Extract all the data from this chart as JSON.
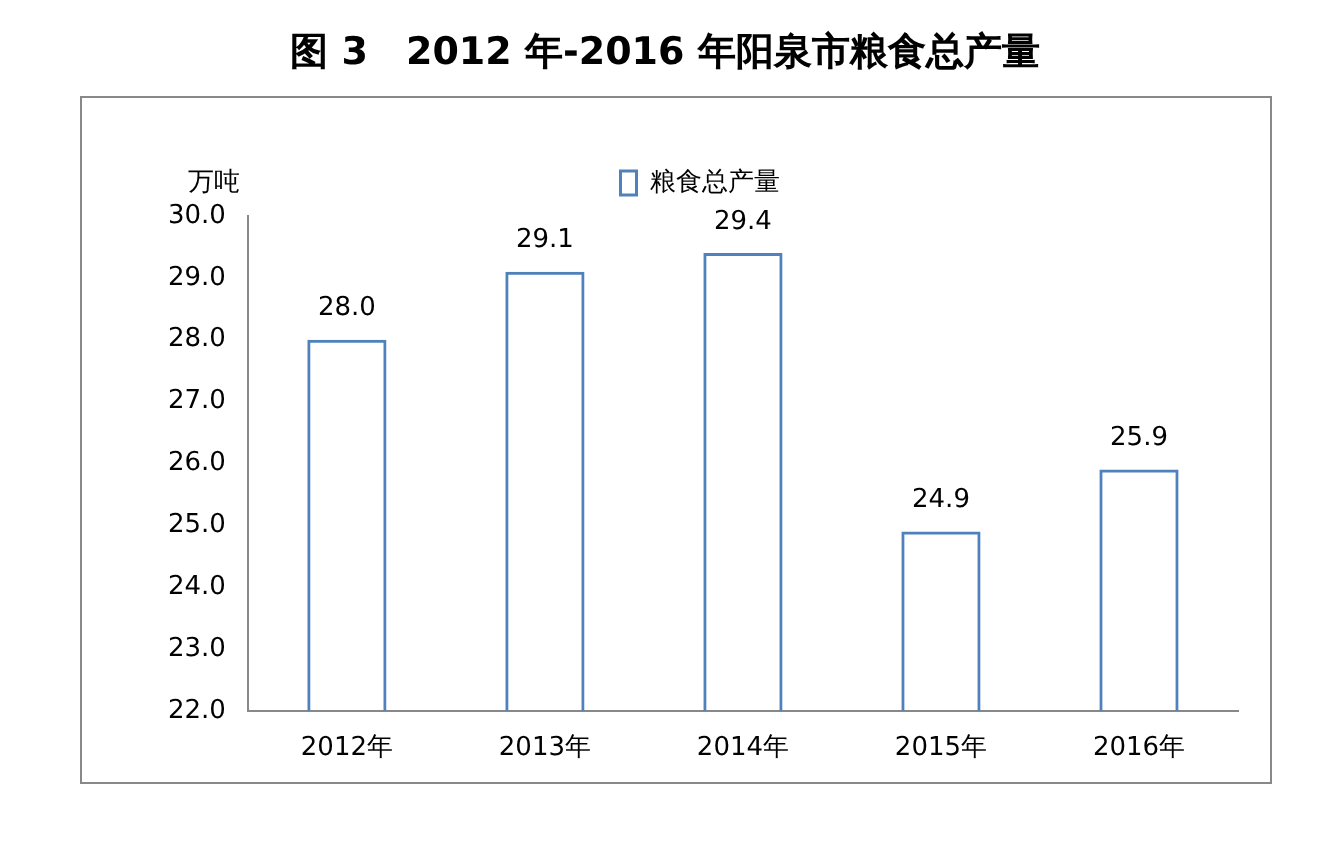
{
  "chart_data": {
    "type": "bar",
    "title": "图 3　2012 年-2016 年阳泉市粮食总产量",
    "ylabel": "万吨",
    "categories": [
      "2012年",
      "2013年",
      "2014年",
      "2015年",
      "2016年"
    ],
    "series": [
      {
        "name": "粮食总产量",
        "color": "#4f81bd",
        "values": [
          28.0,
          29.1,
          29.4,
          24.9,
          25.9
        ],
        "value_labels": [
          "28.0",
          "29.1",
          "29.4",
          "24.9",
          "25.9"
        ]
      }
    ],
    "ylim": [
      22,
      30
    ],
    "yticks": [
      {
        "value": 22,
        "label": "22.0"
      },
      {
        "value": 23,
        "label": "23.0"
      },
      {
        "value": 24,
        "label": "24.0"
      },
      {
        "value": 25,
        "label": "25.0"
      },
      {
        "value": 26,
        "label": "26.0"
      },
      {
        "value": 27,
        "label": "27.0"
      },
      {
        "value": 28,
        "label": "28.0"
      },
      {
        "value": 29,
        "label": "29.0"
      },
      {
        "value": 30,
        "label": "30.0"
      }
    ],
    "grid": false,
    "legend": "top"
  }
}
